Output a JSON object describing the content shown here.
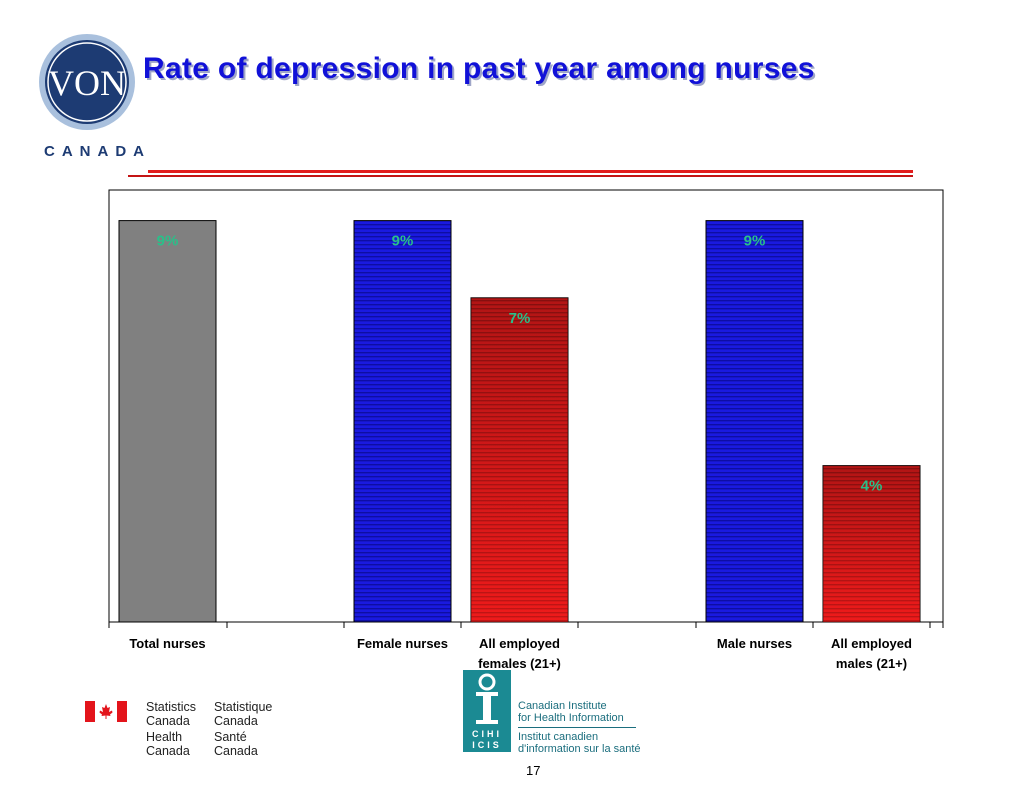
{
  "header": {
    "title": "Rate of depression in past year among nurses",
    "logo_text": "VON",
    "logo_subtext": "CANADA"
  },
  "chart_data": {
    "type": "bar",
    "categories": [
      "Total nurses",
      "Female nurses",
      "All employed females (21+)",
      "Male nurses",
      "All employed males (21+)"
    ],
    "tick_labels": [
      [
        "Total nurses"
      ],
      [
        "Female nurses"
      ],
      [
        "All employed",
        "females (21+)"
      ],
      [
        "Male nurses"
      ],
      [
        "All employed",
        "males (21+)"
      ]
    ],
    "values": [
      9,
      9,
      7,
      9,
      4
    ],
    "data_labels": [
      "9%",
      "9%",
      "7%",
      "9%",
      "4%"
    ],
    "bar_colors": [
      "#808080",
      "#1a1ae0",
      "#c01818",
      "#1a1ae0",
      "#c01818"
    ],
    "ylim": [
      0,
      10
    ],
    "grid": false,
    "legend": "none"
  },
  "footer": {
    "statcan": {
      "en_1": "Statistics",
      "en_2": "Canada",
      "fr_1": "Statistique",
      "fr_2": "Canada",
      "hc_en_1": "Health",
      "hc_en_2": "Canada",
      "hc_fr_1": "Santé",
      "hc_fr_2": "Canada"
    },
    "cihi": {
      "acronym_en": "CIHI",
      "acronym_fr": "ICIS",
      "name_en_1": "Canadian Institute",
      "name_en_2": "for Health Information",
      "name_fr_1": "Institut canadien",
      "name_fr_2": "d'information sur la santé"
    },
    "page_number": "17"
  }
}
